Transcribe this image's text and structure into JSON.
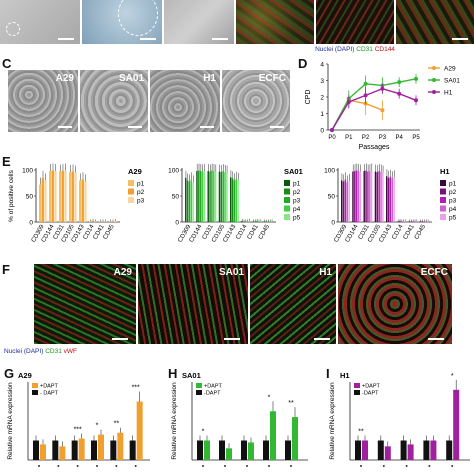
{
  "top_row": {
    "caption_nuclei": "Nuclei (DAPI)",
    "caption_cd31": "CD31",
    "caption_cd144": "CD144"
  },
  "panel_c": {
    "letter": "C",
    "images": [
      {
        "label": "A29"
      },
      {
        "label": "SA01"
      },
      {
        "label": "H1"
      },
      {
        "label": "ECFC"
      }
    ]
  },
  "panel_d": {
    "letter": "D",
    "ylabel": "CPD",
    "xlabel": "Passages"
  },
  "panel_e": {
    "letter": "E",
    "ylabel": "% of positive cells"
  },
  "panel_f": {
    "letter": "F",
    "images": [
      {
        "label": "A29"
      },
      {
        "label": "SA01"
      },
      {
        "label": "H1"
      },
      {
        "label": "ECFC"
      }
    ],
    "caption_nuclei": "Nuclei (DAPI)",
    "caption_cd31": "CD31",
    "caption_vwf": "vWF"
  },
  "panel_g": {
    "letter": "G",
    "ylabel": "Relative mRNA expression"
  },
  "panel_h": {
    "letter": "H",
    "ylabel": "Relative mRNA expression"
  },
  "panel_i": {
    "letter": "I",
    "ylabel": "Relative mRNA expression"
  },
  "colors": {
    "a29": "#f0a030",
    "sa01": "#33b833",
    "h1": "#a020a0",
    "black": "#111111"
  },
  "chart_data": [
    {
      "id": "D",
      "type": "line",
      "ylabel": "CPD",
      "xlabel": "Passages",
      "categories": [
        "P0",
        "P1",
        "P2",
        "P3",
        "P4",
        "P5"
      ],
      "ylim": [
        0,
        4
      ],
      "yticks": [
        "0",
        "1",
        "2",
        "3",
        "4"
      ],
      "legend_position": "right",
      "series": [
        {
          "name": "A29",
          "color": "#f0a030",
          "values": [
            0,
            1.8,
            1.6,
            1.2,
            null,
            null
          ],
          "errors": [
            0,
            0.4,
            0.7,
            0.6,
            null,
            null
          ]
        },
        {
          "name": "SA01",
          "color": "#33b833",
          "values": [
            0,
            1.9,
            2.8,
            2.7,
            2.9,
            3.1
          ],
          "errors": [
            0,
            0.5,
            0.5,
            0.5,
            0.3,
            0.3
          ]
        },
        {
          "name": "H1",
          "color": "#a020a0",
          "values": [
            0,
            1.7,
            2.1,
            2.5,
            2.2,
            1.8
          ],
          "errors": [
            0,
            0.4,
            0.5,
            0.3,
            0.3,
            0.3
          ]
        }
      ]
    },
    {
      "id": "E-A29",
      "type": "bar",
      "title": "A29",
      "categories": [
        "CD309",
        "CD144",
        "CD31",
        "CD105",
        "CD143",
        "CD14",
        "CD41",
        "CD45"
      ],
      "ylim": [
        0,
        100
      ],
      "yticks": [
        "0",
        "50",
        "100"
      ],
      "series": [
        {
          "name": "p1",
          "color": "#f4bd6a",
          "values": [
            72,
            98,
            97,
            96,
            80,
            1,
            1,
            1
          ]
        },
        {
          "name": "p2",
          "color": "#f0a030",
          "values": [
            85,
            99,
            98,
            97,
            82,
            2,
            1,
            1
          ]
        },
        {
          "name": "p3",
          "color": "#f8d6a0",
          "values": [
            80,
            98,
            99,
            95,
            78,
            1,
            1,
            2
          ]
        }
      ]
    },
    {
      "id": "E-SA01",
      "type": "bar",
      "title": "SA01",
      "categories": [
        "CD309",
        "CD144",
        "CD31",
        "CD105",
        "CD143",
        "CD14",
        "CD41",
        "CD45"
      ],
      "ylim": [
        0,
        100
      ],
      "yticks": [
        "0",
        "50",
        "100"
      ],
      "series": [
        {
          "name": "p1",
          "color": "#0a5a0a",
          "values": [
            85,
            98,
            98,
            97,
            86,
            2,
            1,
            1
          ]
        },
        {
          "name": "p2",
          "color": "#1a8a1a",
          "values": [
            80,
            99,
            97,
            96,
            84,
            1,
            1,
            1
          ]
        },
        {
          "name": "p3",
          "color": "#22aa22",
          "values": [
            78,
            98,
            99,
            98,
            80,
            1,
            2,
            1
          ]
        },
        {
          "name": "p4",
          "color": "#44cc44",
          "values": [
            82,
            97,
            98,
            96,
            83,
            1,
            1,
            1
          ]
        },
        {
          "name": "p5",
          "color": "#88e888",
          "values": [
            76,
            98,
            97,
            95,
            81,
            2,
            1,
            1
          ]
        }
      ]
    },
    {
      "id": "E-H1",
      "type": "bar",
      "title": "H1",
      "categories": [
        "CD309",
        "CD144",
        "CD31",
        "CD105",
        "CD143",
        "CD14",
        "CD41",
        "CD45"
      ],
      "ylim": [
        0,
        100
      ],
      "yticks": [
        "0",
        "50",
        "100"
      ],
      "series": [
        {
          "name": "p1",
          "color": "#3a0a3a",
          "values": [
            80,
            97,
            98,
            97,
            88,
            1,
            1,
            1
          ]
        },
        {
          "name": "p2",
          "color": "#7a107a",
          "values": [
            78,
            98,
            99,
            96,
            85,
            2,
            1,
            1
          ]
        },
        {
          "name": "p3",
          "color": "#b020b0",
          "values": [
            82,
            99,
            97,
            98,
            87,
            1,
            1,
            1
          ]
        },
        {
          "name": "p4",
          "color": "#d060d0",
          "values": [
            76,
            98,
            98,
            97,
            84,
            1,
            1,
            1
          ]
        },
        {
          "name": "p5",
          "color": "#eaa0ea",
          "values": [
            79,
            97,
            99,
            95,
            86,
            1,
            1,
            1
          ]
        }
      ]
    },
    {
      "id": "G",
      "type": "bar",
      "title": "A29",
      "ylabel": "Relative mRNA expression",
      "ylim": [
        0,
        4
      ],
      "legend": [
        "+DAPT",
        "- DAPT"
      ],
      "series": [
        {
          "name": "+DAPT",
          "color": "#f0a030",
          "values": [
            0.8,
            0.7,
            1.1,
            1.3,
            1.4,
            3.0
          ]
        },
        {
          "name": "- DAPT",
          "color": "#111111",
          "values": [
            1.0,
            1.0,
            1.0,
            1.0,
            1.0,
            1.0
          ]
        }
      ],
      "annotations": [
        "***",
        "**",
        "*",
        "***"
      ]
    },
    {
      "id": "H",
      "type": "bar",
      "title": "SA01",
      "ylabel": "Relative mRNA expression",
      "ylim": [
        0,
        4
      ],
      "legend": [
        "+DAPT",
        "-DAPT"
      ],
      "series": [
        {
          "name": "+DAPT",
          "color": "#33b833",
          "values": [
            1.0,
            0.6,
            0.9,
            2.5,
            2.2
          ]
        },
        {
          "name": "-DAPT",
          "color": "#111111",
          "values": [
            1.0,
            1.0,
            1.0,
            1.0,
            1.0
          ]
        }
      ],
      "annotations": [
        "*",
        "**",
        "*"
      ]
    },
    {
      "id": "I",
      "type": "bar",
      "title": "H1",
      "ylabel": "Relative mRNA expression",
      "ylim": [
        0,
        4
      ],
      "legend": [
        "+DAPT",
        "-DAPT"
      ],
      "series": [
        {
          "name": "+DAPT",
          "color": "#a020a0",
          "values": [
            1.0,
            0.7,
            0.8,
            1.0,
            3.6
          ]
        },
        {
          "name": "-DAPT",
          "color": "#111111",
          "values": [
            1.0,
            1.0,
            1.0,
            1.0,
            1.0
          ]
        }
      ],
      "annotations": [
        "*",
        "**"
      ]
    }
  ]
}
